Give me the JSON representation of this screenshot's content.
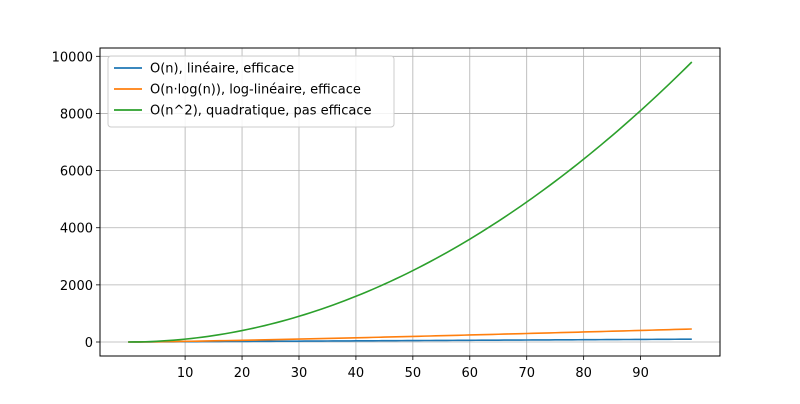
{
  "chart_data": {
    "type": "line",
    "title": "",
    "xlabel": "",
    "ylabel": "",
    "xlim": [
      -4.95,
      103.95
    ],
    "ylim": [
      -490.05,
      10291.05
    ],
    "xticks": [
      10,
      20,
      30,
      40,
      50,
      60,
      70,
      80,
      90
    ],
    "yticks": [
      0,
      2000,
      4000,
      6000,
      8000,
      10000
    ],
    "grid": true,
    "legend_position": "top-left",
    "x": {
      "start": 0,
      "end": 99,
      "step": 1
    },
    "series": [
      {
        "name": "O(n), linéaire, efficace",
        "color": "#1f77b4",
        "formula": "n",
        "values_at": {
          "0": 0,
          "50": 50,
          "99": 99
        }
      },
      {
        "name": "O(n·log(n)), log-linéaire, efficace",
        "color": "#ff7f0e",
        "formula": "n*ln(n)",
        "values_at": {
          "1": 0,
          "50": 195.6,
          "99": 454.9
        }
      },
      {
        "name": "O(n^2), quadratique, pas efficace",
        "color": "#2ca02c",
        "formula": "n^2",
        "values_at": {
          "0": 0,
          "50": 2500,
          "99": 9801
        }
      }
    ]
  }
}
